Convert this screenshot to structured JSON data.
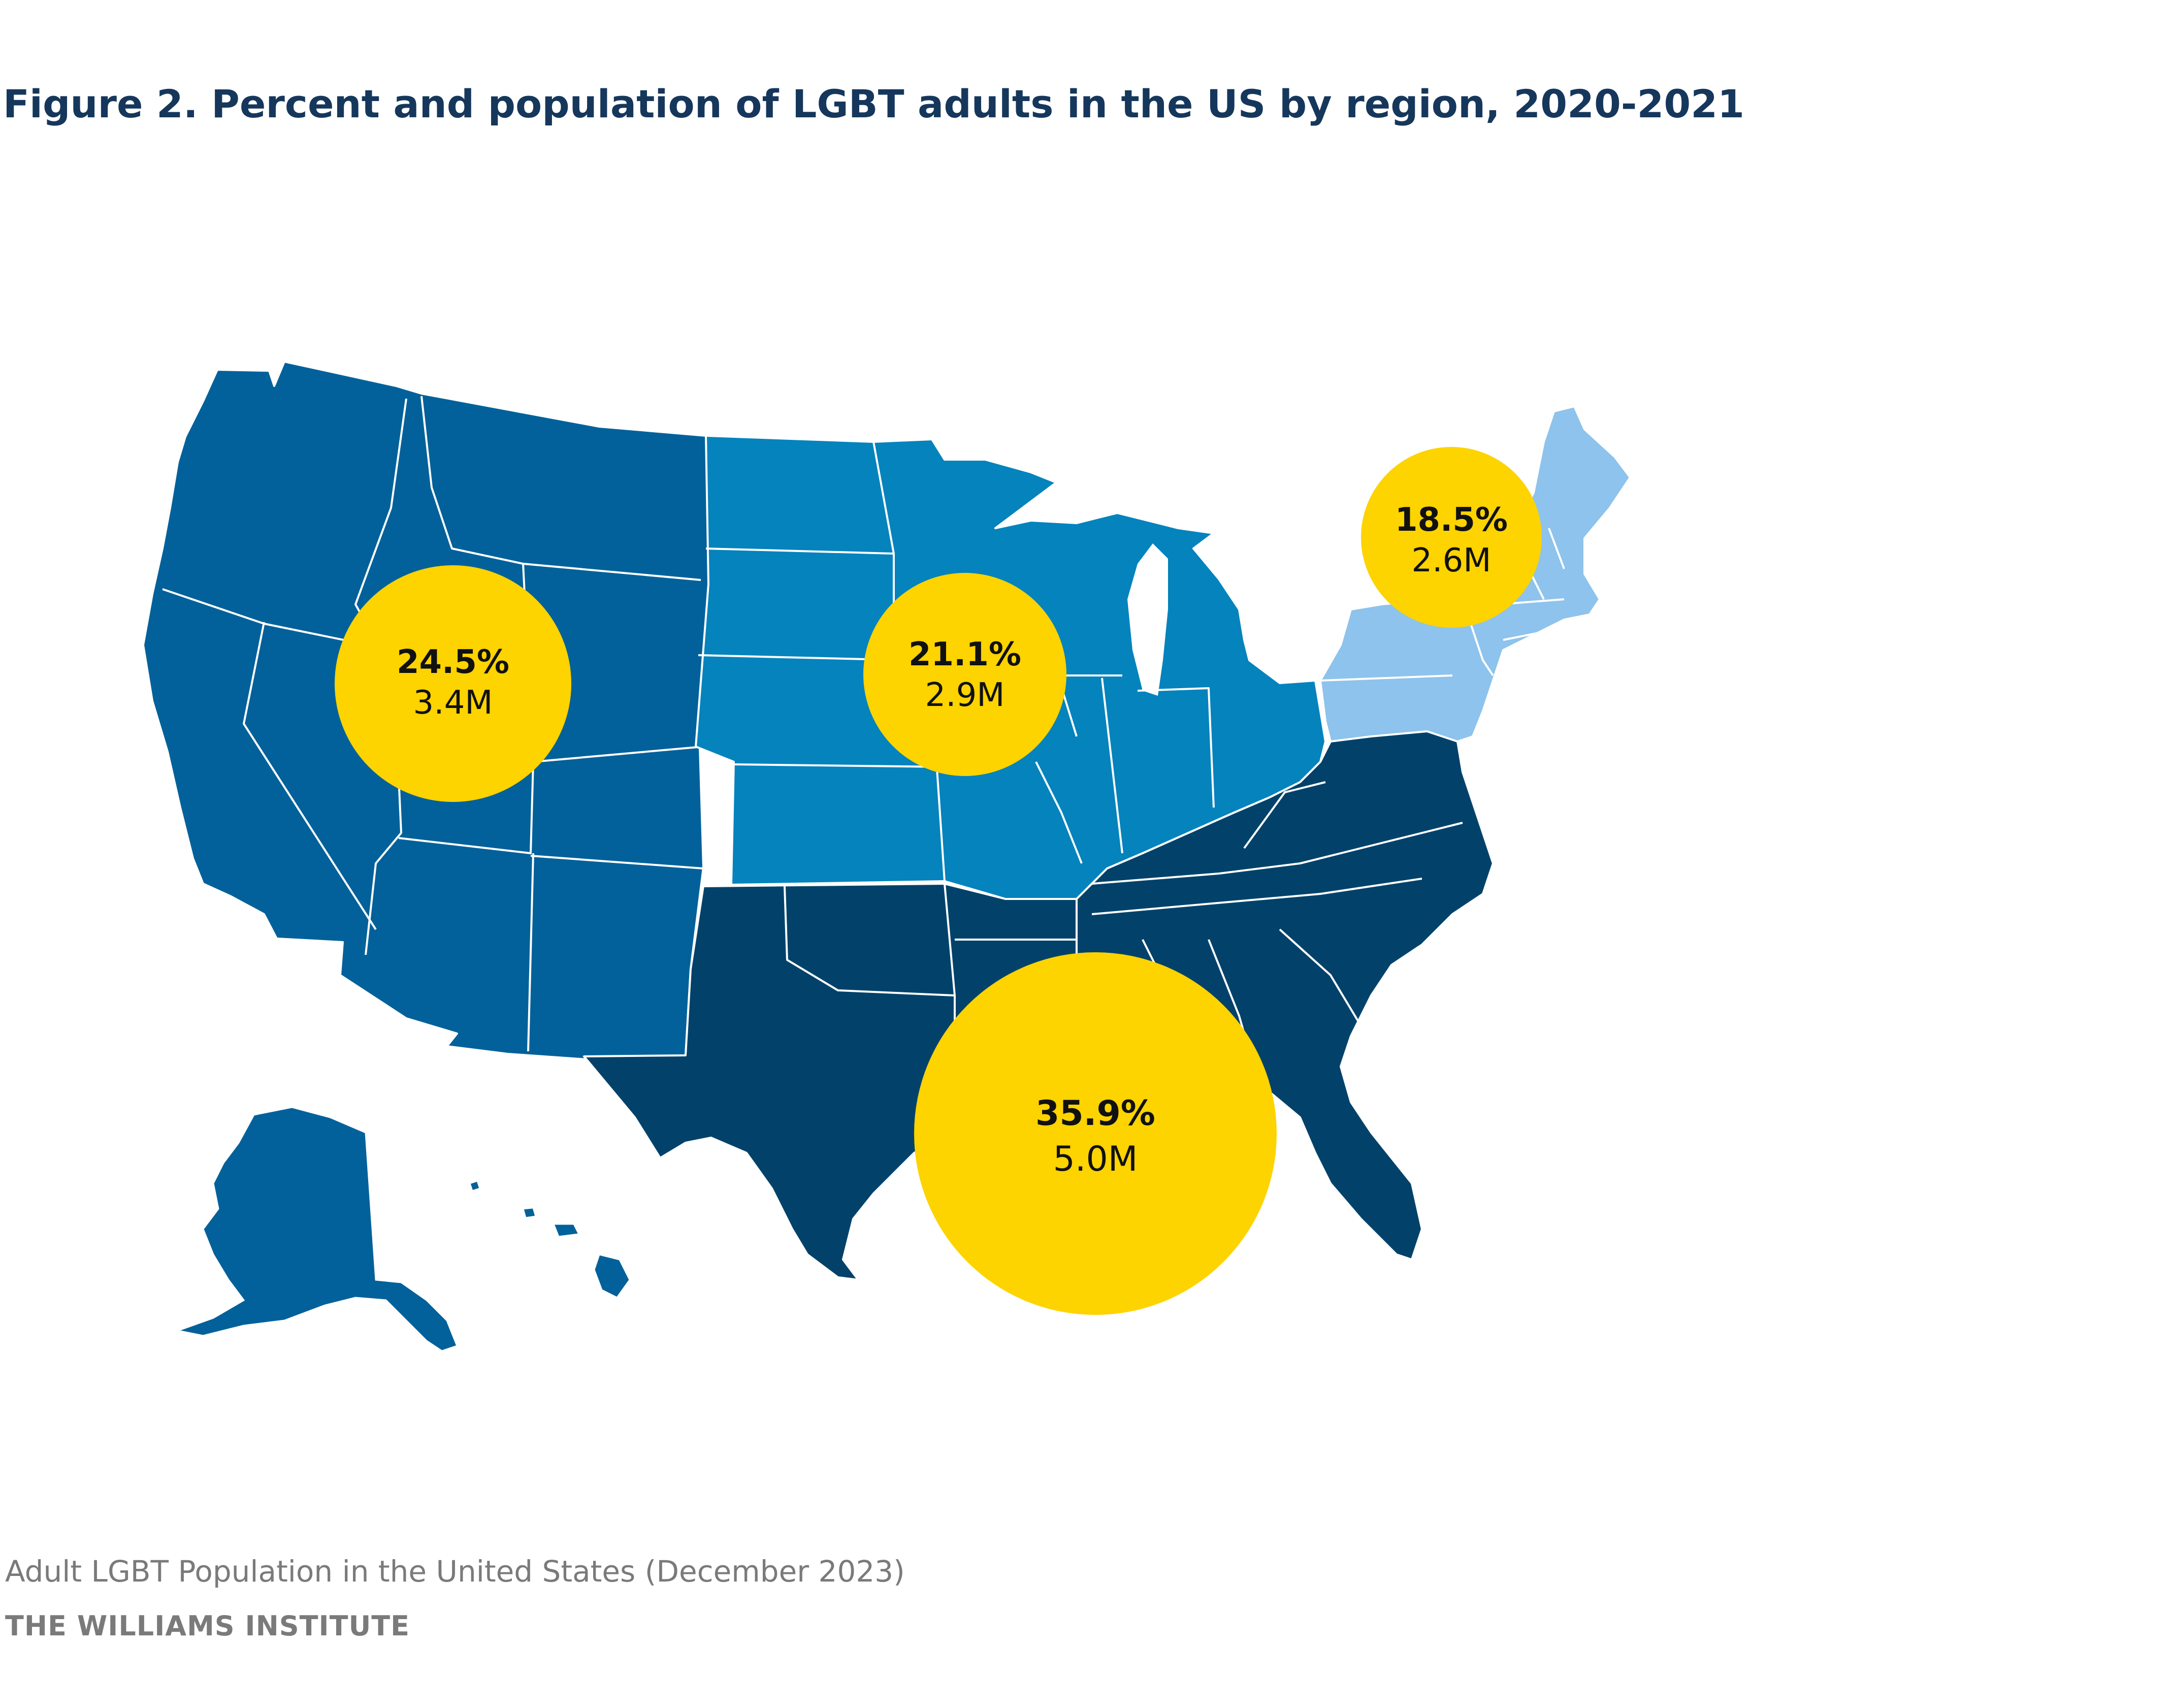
{
  "title": "Figure 2. Percent and population of LGBT adults in the US by region, 2020-2021",
  "source": "Adult LGBT Population in the United States (December 2023)",
  "organization": "THE WILLIAMS INSTITUTE",
  "colors": {
    "west": "#02619a",
    "midwest": "#0483bd",
    "northeast": "#8dc3ec",
    "south": "#02426a",
    "bubble": "#fdd300",
    "border": "#ffffff",
    "title": "#16375c"
  },
  "regions": [
    {
      "id": "west",
      "percent": "24.5%",
      "population": "3.4M",
      "pct_value": 24.5,
      "pop_millions": 3.4
    },
    {
      "id": "midwest",
      "percent": "21.1%",
      "population": "2.9M",
      "pct_value": 21.1,
      "pop_millions": 2.9
    },
    {
      "id": "northeast",
      "percent": "18.5%",
      "population": "2.6M",
      "pct_value": 18.5,
      "pop_millions": 2.6
    },
    {
      "id": "south",
      "percent": "35.9%",
      "population": "5.0M",
      "pct_value": 35.9,
      "pop_millions": 5.0
    }
  ]
}
